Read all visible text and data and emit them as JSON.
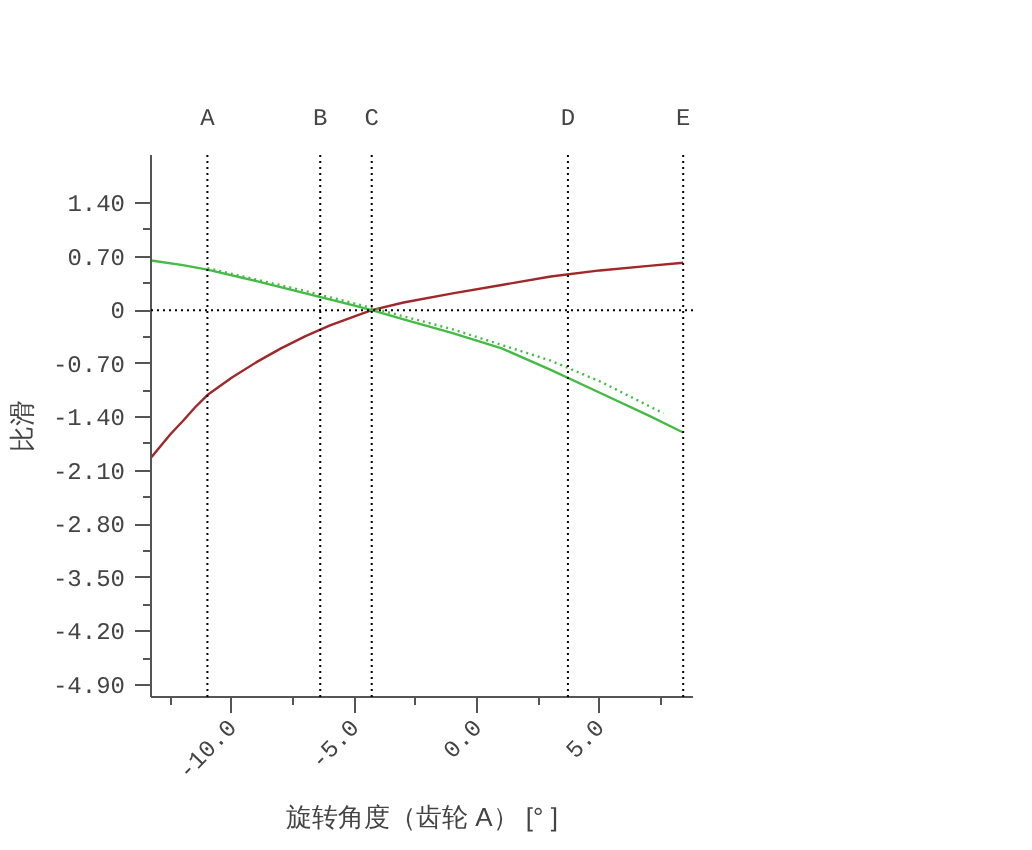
{
  "chart_data": {
    "type": "line",
    "xlabel": "旋转角度（齿轮 A） [° ]",
    "ylabel": "比滑",
    "xlim": [
      -13.3,
      8.8
    ],
    "ylim": [
      -5.06,
      2.03
    ],
    "xticks": [
      {
        "value": -10,
        "label": "-10.0"
      },
      {
        "value": -5,
        "label": "-5.0"
      },
      {
        "value": 0,
        "label": "0.0"
      },
      {
        "value": 5,
        "label": "5.0"
      }
    ],
    "yticks": [
      {
        "value": 1.4,
        "label": "1.40"
      },
      {
        "value": 0.7,
        "label": "0.70"
      },
      0,
      {
        "value": -0.7,
        "label": "-0.70"
      },
      {
        "value": -1.4,
        "label": "-1.40"
      },
      {
        "value": -2.1,
        "label": "-2.10"
      },
      {
        "value": -2.8,
        "label": "-2.80"
      },
      {
        "value": -3.5,
        "label": "-3.50"
      },
      {
        "value": -4.2,
        "label": "-4.20"
      },
      {
        "value": -4.9,
        "label": "-4.90"
      }
    ],
    "grid": false,
    "marker": "none",
    "series": [
      {
        "color": "#a0282a",
        "line_style": "solid",
        "x": [
          -13.3,
          -12.5,
          -12,
          -11.5,
          -11,
          -10,
          -9,
          -8,
          -7,
          -6,
          -5,
          -4.3,
          -3,
          -1,
          1,
          3,
          5,
          7,
          8.4
        ],
        "values": [
          -1.93,
          -1.62,
          -1.45,
          -1.27,
          -1.11,
          -0.88,
          -0.68,
          -0.5,
          -0.34,
          -0.2,
          -0.08,
          0,
          0.1,
          0.22,
          0.33,
          0.44,
          0.52,
          0.58,
          0.62
        ]
      },
      {
        "color": "#44bb44",
        "line_style": "solid",
        "x": [
          -13.3,
          -12,
          -11,
          -9,
          -7,
          -5,
          -4.3,
          -3,
          -1,
          1,
          3,
          5,
          7,
          8.4
        ],
        "values": [
          0.65,
          0.59,
          0.53,
          0.38,
          0.22,
          0.06,
          0,
          -0.12,
          -0.3,
          -0.5,
          -0.78,
          -1.08,
          -1.38,
          -1.6
        ]
      },
      {
        "color": "#44bb44",
        "line_style": "dotted",
        "x": [
          -11,
          -7,
          -4.3,
          -1,
          3,
          5,
          7.6
        ],
        "values": [
          0.55,
          0.25,
          0.03,
          -0.25,
          -0.66,
          -0.93,
          -1.35
        ]
      }
    ],
    "ref_lines": [
      {
        "axis": "x",
        "value": -11.0,
        "label": "A",
        "line_style": "dotted",
        "color": "#000000"
      },
      {
        "axis": "x",
        "value": -6.4,
        "label": "B",
        "line_style": "dotted",
        "color": "#000000"
      },
      {
        "axis": "x",
        "value": -4.3,
        "label": "C",
        "line_style": "dotted",
        "color": "#000000"
      },
      {
        "axis": "x",
        "value": 3.7,
        "label": "D",
        "line_style": "dotted",
        "color": "#000000"
      },
      {
        "axis": "x",
        "value": 8.4,
        "label": "E",
        "line_style": "dotted",
        "color": "#000000"
      },
      {
        "axis": "y",
        "value": 0,
        "label": null,
        "line_style": "dotted",
        "color": "#000000"
      }
    ]
  }
}
